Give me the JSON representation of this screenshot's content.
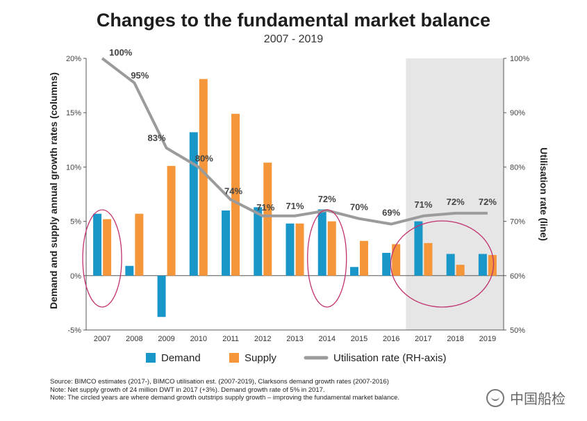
{
  "chart_data": {
    "type": "bar",
    "title": "Changes to the fundamental market balance",
    "subtitle": "2007 - 2019",
    "categories": [
      "2007",
      "2008",
      "2009",
      "2010",
      "2011",
      "2012",
      "2013",
      "2014",
      "2015",
      "2016",
      "2017",
      "2018",
      "2019"
    ],
    "series": [
      {
        "name": "Demand",
        "type": "bar",
        "color": "#1a97c9",
        "values": [
          5.7,
          0.9,
          -3.8,
          13.2,
          6.0,
          6.3,
          4.8,
          6.1,
          0.8,
          2.1,
          5.0,
          2.0,
          2.0
        ]
      },
      {
        "name": "Supply",
        "type": "bar",
        "color": "#f5963a",
        "values": [
          5.2,
          5.7,
          10.1,
          18.1,
          14.9,
          10.4,
          4.8,
          5.0,
          3.2,
          2.9,
          3.0,
          1.0,
          1.9
        ]
      },
      {
        "name": "Utilisation rate (RH-axis)",
        "type": "line",
        "color": "#9b9b9b",
        "values": [
          100,
          95.5,
          83.5,
          80,
          74,
          71,
          71,
          72,
          70.5,
          69.5,
          71,
          71.5,
          71.5
        ]
      }
    ],
    "line_labels": [
      "100%",
      "95%",
      "83%",
      "80%",
      "74%",
      "71%",
      "71%",
      "72%",
      "70%",
      "69%",
      "71%",
      "72%",
      "72%"
    ],
    "ylabel": "Demand and supply annual growth rates (columns)",
    "y2label": "Utilisation rate (line)",
    "ylim": [
      -5,
      20
    ],
    "y2lim": [
      50,
      100
    ],
    "yticks": [
      "-5%",
      "0%",
      "5%",
      "10%",
      "15%",
      "20%"
    ],
    "y2ticks": [
      "50%",
      "60%",
      "70%",
      "80%",
      "90%",
      "100%"
    ],
    "shaded_years": [
      "2017",
      "2018",
      "2019"
    ],
    "circled_years": [
      "2007",
      "2014",
      "2017-2018"
    ],
    "legend": [
      "Demand",
      "Supply",
      "Utilisation rate (RH-axis)"
    ]
  },
  "notes": {
    "source": "Source: BIMCO estimates (2017-), BIMCO utilisation est. (2007-2019), Clarksons demand growth rates (2007-2016)",
    "note1": "Note: Net supply growth of 24 million DWT in 2017 (+3%). Demand growth rate of 5% in 2017.",
    "note2": "Note: The circled years are where demand growth outstrips supply growth – improving the fundamental market balance."
  },
  "watermark": "中国船检"
}
